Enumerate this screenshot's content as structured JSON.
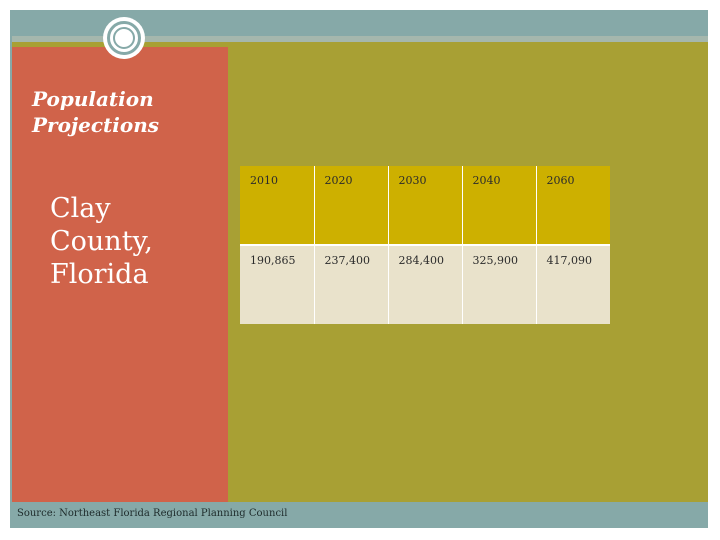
{
  "slide": {
    "title": "Population Projections",
    "subtitle_lines": [
      "Clay",
      "County,",
      "Florida"
    ],
    "source": "Source: Northeast Florida Regional Planning Council"
  },
  "table": {
    "years": [
      "2010",
      "2020",
      "2030",
      "2040",
      "2060"
    ],
    "values": [
      "190,865",
      "237,400",
      "284,400",
      "325,900",
      "417,090"
    ]
  },
  "colors": {
    "frame": "#86a9a8",
    "background": "#a8a034",
    "left_panel": "#d0634a",
    "header_row": "#cdb000",
    "body_row": "#e9e2cb"
  },
  "icons": {
    "logo": "ring-logo-icon"
  }
}
